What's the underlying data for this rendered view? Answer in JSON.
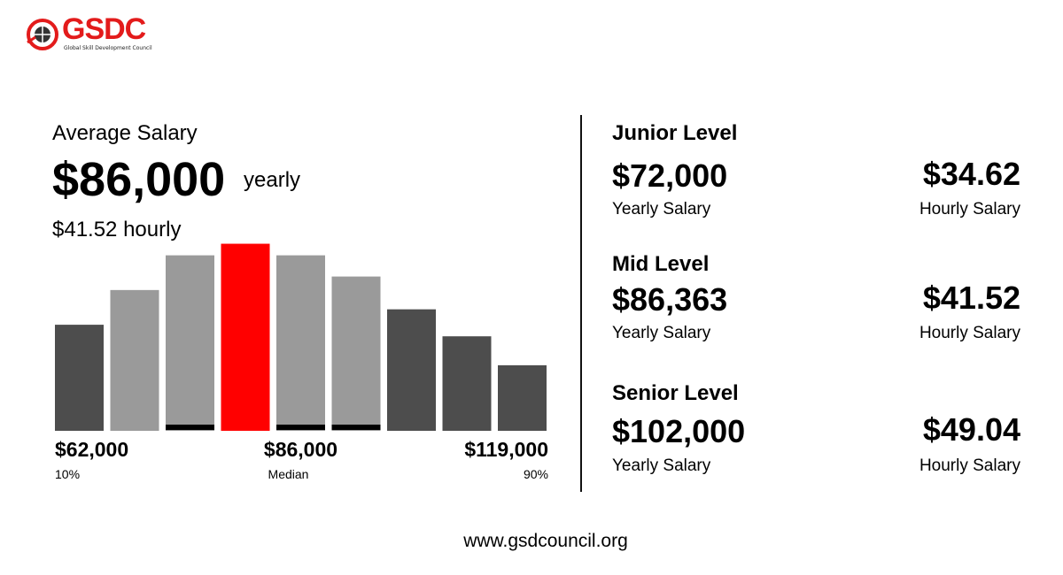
{
  "brand": {
    "name": "GSDC",
    "tagline": "Global Skill Development Council",
    "accent": "#e31b1b"
  },
  "summary": {
    "label": "Average Salary",
    "value": "$86,000",
    "unit": "yearly",
    "hourly": "$41.52 hourly"
  },
  "chart_data": {
    "type": "bar",
    "title": "",
    "xlabel": "",
    "ylabel": "",
    "highlight_index": 3,
    "values": [
      0.55,
      0.73,
      0.91,
      0.97,
      0.91,
      0.8,
      0.63,
      0.49,
      0.34
    ],
    "colors": [
      "#4d4d4d",
      "#9a9a9a",
      "#9a9a9a",
      "#ff0000",
      "#9a9a9a",
      "#9a9a9a",
      "#4d4d4d",
      "#4d4d4d",
      "#4d4d4d"
    ],
    "underline": [
      false,
      false,
      true,
      false,
      true,
      true,
      false,
      false,
      false
    ],
    "ticks": [
      {
        "value": "$62,000",
        "sub": "10%",
        "bar": 0
      },
      {
        "value": "$86,000",
        "sub": "Median",
        "bar": 4
      },
      {
        "value": "$119,000",
        "sub": "90%",
        "bar": 8
      }
    ]
  },
  "levels": [
    {
      "title": "Junior Level",
      "yearly": "$72,000",
      "yearly_caption": "Yearly Salary",
      "hourly": "$34.62",
      "hourly_caption": "Hourly Salary"
    },
    {
      "title": "Mid Level",
      "yearly": "$86,363",
      "yearly_caption": "Yearly Salary",
      "hourly": "$41.52",
      "hourly_caption": "Hourly Salary"
    },
    {
      "title": "Senior Level",
      "yearly": "$102,000",
      "yearly_caption": "Yearly Salary",
      "hourly": "$49.04",
      "hourly_caption": "Hourly Salary"
    }
  ],
  "footer": {
    "url": "www.gsdcouncil.org"
  }
}
